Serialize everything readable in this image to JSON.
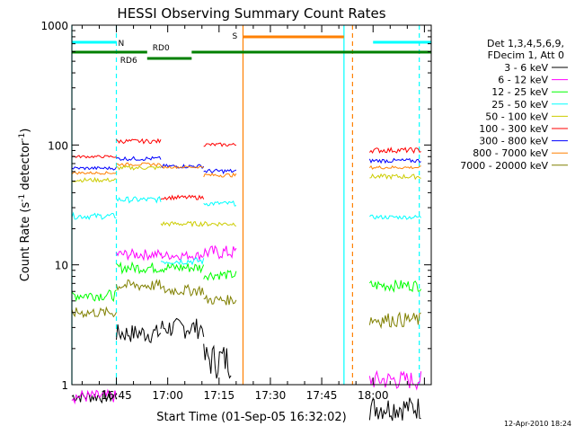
{
  "chart_data": {
    "type": "line",
    "title": "HESSI Observing Summary Count Rates",
    "xlabel": "Start Time (01-Sep-05 16:32:02)",
    "ylabel_main": "Count Rate (s",
    "ylabel_sup1": "-1",
    "ylabel_mid": " detector",
    "ylabel_sup2": "-1",
    "ylabel_end": ")",
    "x_start": "16:32:02",
    "xlim_min": [
      0,
      105
    ],
    "ylim": [
      1,
      1000
    ],
    "yscale": "log",
    "x_ticks": [
      {
        "label": "16:45",
        "t": 13
      },
      {
        "label": "17:00",
        "t": 28
      },
      {
        "label": "17:15",
        "t": 43
      },
      {
        "label": "17:30",
        "t": 58
      },
      {
        "label": "17:45",
        "t": 73
      },
      {
        "label": "18:00",
        "t": 88
      }
    ],
    "y_ticks": [
      {
        "label": "1",
        "v": 1
      },
      {
        "label": "10",
        "v": 10
      },
      {
        "label": "100",
        "v": 100
      },
      {
        "label": "1000",
        "v": 1000
      }
    ],
    "legend_header": [
      "Det 1,3,4,5,6,9,",
      "FDecim 1, Att 0"
    ],
    "series": [
      {
        "name": "3 - 6 keV",
        "color": "#000000",
        "segments": [
          {
            "t0": 0,
            "t1": 13,
            "min": 0.7,
            "max": 0.9
          },
          {
            "t0": 13,
            "t1": 26,
            "min": 2.2,
            "max": 3.2
          },
          {
            "t0": 26,
            "t1": 38.5,
            "min": 2.4,
            "max": 3.6
          },
          {
            "t0": 38.5,
            "t1": 46.5,
            "min": 1.1,
            "max": 2.2
          },
          {
            "t0": 87,
            "t1": 102,
            "min": 0.5,
            "max": 0.8
          }
        ]
      },
      {
        "name": "6 - 12 keV",
        "color": "#ff00ff",
        "segments": [
          {
            "t0": 0,
            "t1": 13,
            "min": 0.7,
            "max": 0.9
          },
          {
            "t0": 13,
            "t1": 26,
            "min": 11,
            "max": 13.5
          },
          {
            "t0": 26,
            "t1": 38.5,
            "min": 11,
            "max": 13
          },
          {
            "t0": 38.5,
            "t1": 48,
            "min": 11,
            "max": 14.5
          },
          {
            "t0": 87,
            "t1": 102,
            "min": 0.9,
            "max": 1.3
          }
        ]
      },
      {
        "name": "12 - 25 keV",
        "color": "#00ff00",
        "segments": [
          {
            "t0": 0,
            "t1": 13,
            "min": 5,
            "max": 6.2
          },
          {
            "t0": 13,
            "t1": 26,
            "min": 8.5,
            "max": 10.5
          },
          {
            "t0": 26,
            "t1": 38.5,
            "min": 8.5,
            "max": 10.5
          },
          {
            "t0": 38.5,
            "t1": 48,
            "min": 7.5,
            "max": 9
          },
          {
            "t0": 87,
            "t1": 102,
            "min": 6,
            "max": 7.5
          }
        ]
      },
      {
        "name": "25 - 50 keV",
        "color": "#00ffff",
        "segments": [
          {
            "t0": 0,
            "t1": 13,
            "min": 24,
            "max": 27
          },
          {
            "t0": 13,
            "t1": 26,
            "min": 33,
            "max": 37
          },
          {
            "t0": 26,
            "t1": 38.5,
            "min": 10,
            "max": 11.5
          },
          {
            "t0": 38.5,
            "t1": 48,
            "min": 31,
            "max": 34
          },
          {
            "t0": 87,
            "t1": 102,
            "min": 24,
            "max": 26
          }
        ]
      },
      {
        "name": "50 - 100 keV",
        "color": "#cccc00",
        "segments": [
          {
            "t0": 0,
            "t1": 13,
            "min": 49,
            "max": 53
          },
          {
            "t0": 13,
            "t1": 26,
            "min": 62,
            "max": 67
          },
          {
            "t0": 26,
            "t1": 38.5,
            "min": 21,
            "max": 23
          },
          {
            "t0": 38.5,
            "t1": 48,
            "min": 21,
            "max": 23
          },
          {
            "t0": 87,
            "t1": 102,
            "min": 52,
            "max": 57
          }
        ]
      },
      {
        "name": "100 - 300 keV",
        "color": "#ff0000",
        "segments": [
          {
            "t0": 0,
            "t1": 13,
            "min": 78,
            "max": 82
          },
          {
            "t0": 13,
            "t1": 26,
            "min": 103,
            "max": 112
          },
          {
            "t0": 26,
            "t1": 38.5,
            "min": 35,
            "max": 38
          },
          {
            "t0": 38.5,
            "t1": 48,
            "min": 97,
            "max": 104
          },
          {
            "t0": 87,
            "t1": 102,
            "min": 86,
            "max": 95
          }
        ]
      },
      {
        "name": "300 - 800 keV",
        "color": "#0000ff",
        "segments": [
          {
            "t0": 0,
            "t1": 13,
            "min": 62,
            "max": 66
          },
          {
            "t0": 13,
            "t1": 26,
            "min": 74,
            "max": 80
          },
          {
            "t0": 26,
            "t1": 38.5,
            "min": 64,
            "max": 69
          },
          {
            "t0": 38.5,
            "t1": 48,
            "min": 58,
            "max": 63
          },
          {
            "t0": 87,
            "t1": 102,
            "min": 71,
            "max": 77
          }
        ]
      },
      {
        "name": "800 - 7000 keV",
        "color": "#ff8000",
        "segments": [
          {
            "t0": 0,
            "t1": 13,
            "min": 57,
            "max": 60
          },
          {
            "t0": 13,
            "t1": 26,
            "min": 67,
            "max": 71
          },
          {
            "t0": 26,
            "t1": 38.5,
            "min": 64,
            "max": 67
          },
          {
            "t0": 38.5,
            "t1": 48,
            "min": 54,
            "max": 58
          },
          {
            "t0": 87,
            "t1": 102,
            "min": 63,
            "max": 67
          }
        ]
      },
      {
        "name": "7000 - 20000 keV",
        "color": "#808000",
        "segments": [
          {
            "t0": 0,
            "t1": 13,
            "min": 3.6,
            "max": 4.4
          },
          {
            "t0": 13,
            "t1": 26,
            "min": 6,
            "max": 7.5
          },
          {
            "t0": 26,
            "t1": 38.5,
            "min": 5.5,
            "max": 6.8
          },
          {
            "t0": 38.5,
            "t1": 48,
            "min": 4.6,
            "max": 5.6
          },
          {
            "t0": 87,
            "t1": 102,
            "min": 3,
            "max": 4
          }
        ]
      }
    ],
    "flags": [
      {
        "label": "N",
        "color": "#00ffff",
        "segments": [
          [
            0,
            13
          ],
          [
            88,
            105
          ]
        ]
      },
      {
        "label": "S",
        "color": "#ff8000",
        "segments": [
          [
            50,
            79.5
          ]
        ]
      },
      {
        "label": "RD0",
        "color": "#008000",
        "segments": [
          [
            0,
            22
          ],
          [
            35,
            105
          ]
        ]
      },
      {
        "label": "RD6",
        "color": "#008000",
        "segments": [
          [
            22,
            35
          ]
        ]
      }
    ],
    "vlines": [
      {
        "t": 0,
        "color": "#00ffff",
        "dash": false
      },
      {
        "t": 13,
        "color": "#00ffff",
        "dash": true
      },
      {
        "t": 50,
        "color": "#ff8000",
        "dash": false
      },
      {
        "t": 79.5,
        "color": "#00ffff",
        "dash": false
      },
      {
        "t": 82,
        "color": "#ff8000",
        "dash": true
      },
      {
        "t": 101.5,
        "color": "#00ffff",
        "dash": true
      }
    ],
    "footer": "12-Apr-2010 18:24"
  }
}
